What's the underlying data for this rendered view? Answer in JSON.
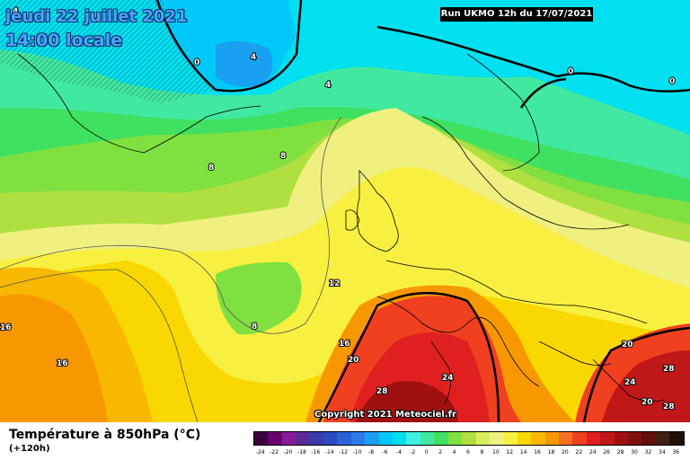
{
  "title": {
    "line1": "jeudi 22 juillet 2021",
    "line2": "14:00 locale"
  },
  "run_banner": "Run UKMO 12h du 17/07/2021",
  "copyright": "Copyright 2021 Meteociel.fr",
  "variable": {
    "title": "Température à 850hPa (°C)",
    "subtitle": "(+120h)"
  },
  "scale": {
    "labels": [
      "-24",
      "-22",
      "-20",
      "-18",
      "-16",
      "-14",
      "-12",
      "-10",
      "-8",
      "-6",
      "-4",
      "-2",
      "0",
      "2",
      "4",
      "6",
      "8",
      "10",
      "12",
      "14",
      "16",
      "18",
      "20",
      "22",
      "24",
      "26",
      "28",
      "30",
      "32",
      "34",
      "36"
    ],
    "colors": [
      "#3a0040",
      "#6a0070",
      "#8a1a9a",
      "#5a2a9a",
      "#3a3aaa",
      "#2a4ac0",
      "#2a60d8",
      "#2a7ae8",
      "#1aa0f0",
      "#00c8f8",
      "#00e0f0",
      "#40f0e0",
      "#40e8a0",
      "#40e060",
      "#80e040",
      "#b0e040",
      "#d8f060",
      "#f0f080",
      "#f8f040",
      "#f8d800",
      "#f8b800",
      "#f89800",
      "#f87020",
      "#f04020",
      "#e02020",
      "#c01818",
      "#a01010",
      "#801010",
      "#601008",
      "#402010",
      "#201008"
    ]
  },
  "isotherm_labels": [
    "4",
    "0",
    "4",
    "4",
    "0",
    "0",
    "8",
    "8",
    "12",
    "8",
    "16",
    "16",
    "20",
    "24",
    "28",
    "20",
    "24",
    "28",
    "20",
    "28",
    "16"
  ],
  "colors": {
    "background_top": "#00e0f0",
    "banner_bg": "#000000"
  }
}
